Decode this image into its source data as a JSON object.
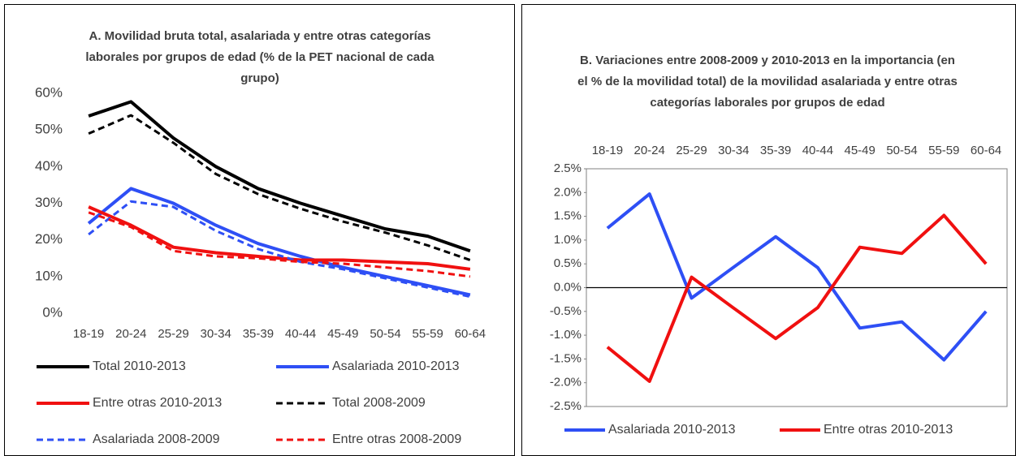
{
  "chart_data": [
    {
      "type": "line",
      "title": "A. Movilidad bruta total, asalariada y entre otras categorías laborales por grupos de edad (% de la PET nacional de cada grupo)",
      "categories": [
        "18-19",
        "20-24",
        "25-29",
        "30-34",
        "35-39",
        "40-44",
        "45-49",
        "50-54",
        "55-59",
        "60-64"
      ],
      "ylim": [
        0,
        60
      ],
      "yticks": [
        {
          "value": 0,
          "label": "0%"
        },
        {
          "value": 10,
          "label": "10%"
        },
        {
          "value": 20,
          "label": "20%"
        },
        {
          "value": 30,
          "label": "30%"
        },
        {
          "value": 40,
          "label": "40%"
        },
        {
          "value": 50,
          "label": "50%"
        },
        {
          "value": 60,
          "label": "60%"
        }
      ],
      "grid": false,
      "legend": "bottom",
      "series": [
        {
          "name": "Total 2010-2013",
          "color": "#000000",
          "dash": false,
          "values": [
            53.8,
            57.7,
            47.8,
            40,
            34,
            30,
            26.5,
            23,
            21,
            17
          ]
        },
        {
          "name": "Asalariada 2010-2013",
          "color": "#2e4ff5",
          "dash": false,
          "values": [
            24.5,
            34,
            30,
            24,
            19,
            15.5,
            12.5,
            10,
            7.5,
            5
          ]
        },
        {
          "name": "Entre otras 2010-2013",
          "color": "#f01010",
          "dash": false,
          "values": [
            29,
            24,
            18,
            16.5,
            15.5,
            14.5,
            14.5,
            14,
            13.5,
            12
          ]
        },
        {
          "name": "Total 2008-2009",
          "color": "#000000",
          "dash": true,
          "values": [
            49,
            54,
            46.5,
            38,
            32.5,
            28.5,
            25,
            22,
            18.5,
            14.5
          ]
        },
        {
          "name": "Asalariada 2008-2009",
          "color": "#2e4ff5",
          "dash": true,
          "values": [
            21.5,
            30.5,
            29,
            22.5,
            17.5,
            14,
            12,
            9.5,
            7,
            4.5
          ]
        },
        {
          "name": "Entre otras 2008-2009",
          "color": "#f01010",
          "dash": true,
          "values": [
            27.5,
            23.5,
            17,
            15.5,
            15,
            14,
            13.5,
            12.5,
            11.5,
            10
          ]
        }
      ]
    },
    {
      "type": "line",
      "title": "B. Variaciones entre 2008-2009 y 2010-2013 en la importancia (en el % de la movilidad total) de la movilidad asalariada y entre otras categorías laborales por grupos de edad",
      "categories": [
        "18-19",
        "20-24",
        "25-29",
        "30-34",
        "35-39",
        "40-44",
        "45-49",
        "50-54",
        "55-59",
        "60-64"
      ],
      "ylim": [
        -2.5,
        2.5
      ],
      "yticks": [
        {
          "value": -2.5,
          "label": "-2.5%"
        },
        {
          "value": -2,
          "label": "-2.0%"
        },
        {
          "value": -1.5,
          "label": "-1.5%"
        },
        {
          "value": -1,
          "label": "-1.0%"
        },
        {
          "value": -0.5,
          "label": "-0.5%"
        },
        {
          "value": 0,
          "label": "0.0%"
        },
        {
          "value": 0.5,
          "label": "0.5%"
        },
        {
          "value": 1,
          "label": "1.0%"
        },
        {
          "value": 1.5,
          "label": "1.5%"
        },
        {
          "value": 2,
          "label": "2.0%"
        },
        {
          "value": 2.5,
          "label": "2.5%"
        }
      ],
      "grid": false,
      "legend": "bottom",
      "series": [
        {
          "name": "Asalariada 2010-2013",
          "color": "#2e4ff5",
          "dash": false,
          "values": [
            1.25,
            1.97,
            -0.22,
            0.43,
            1.07,
            0.42,
            -0.85,
            -0.72,
            -1.52,
            -0.5
          ]
        },
        {
          "name": "Entre otras 2010-2013",
          "color": "#f01010",
          "dash": false,
          "values": [
            -1.25,
            -1.97,
            0.22,
            -0.43,
            -1.07,
            -0.42,
            0.85,
            0.72,
            1.52,
            0.5
          ]
        }
      ]
    }
  ]
}
